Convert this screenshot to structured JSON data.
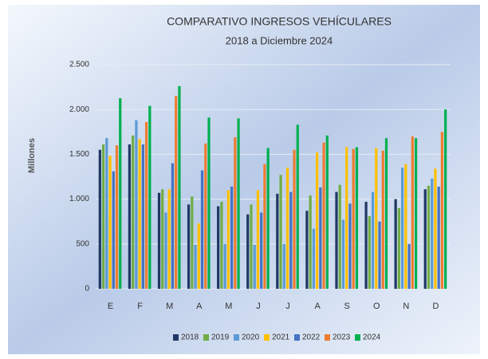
{
  "chart_data": {
    "type": "bar",
    "title": "COMPARATIVO INGRESOS VEHÍCULARES",
    "subtitle": "2018 a Diciembre 2024",
    "y_label": "Millones",
    "categories": [
      "E",
      "F",
      "M",
      "A",
      "M",
      "J",
      "J",
      "A",
      "S",
      "O",
      "N",
      "D"
    ],
    "series": [
      {
        "name": "2018",
        "color": "#203864",
        "values": [
          1550,
          1610,
          1070,
          940,
          920,
          830,
          1060,
          870,
          1080,
          970,
          1000,
          1110
        ]
      },
      {
        "name": "2019",
        "color": "#70ad47",
        "values": [
          1610,
          1710,
          1110,
          1030,
          970,
          940,
          1270,
          1040,
          1160,
          810,
          900,
          1150
        ]
      },
      {
        "name": "2020",
        "color": "#5b9bd5",
        "values": [
          1680,
          1880,
          850,
          490,
          500,
          490,
          500,
          670,
          770,
          1080,
          1350,
          1230
        ]
      },
      {
        "name": "2021",
        "color": "#ffc000",
        "values": [
          1485,
          1670,
          1110,
          730,
          1100,
          1100,
          1350,
          1520,
          1580,
          1570,
          1390,
          1340
        ]
      },
      {
        "name": "2022",
        "color": "#4472c4",
        "values": [
          1310,
          1610,
          1400,
          1320,
          1140,
          850,
          1080,
          1130,
          950,
          750,
          500,
          1140
        ]
      },
      {
        "name": "2023",
        "color": "#ed7d31",
        "values": [
          1600,
          1860,
          2150,
          1620,
          1690,
          1390,
          1550,
          1630,
          1560,
          1540,
          1700,
          1750
        ]
      },
      {
        "name": "2024",
        "color": "#00b050",
        "values": [
          2125,
          2040,
          2260,
          1910,
          1900,
          1570,
          1830,
          1710,
          1580,
          1680,
          1680,
          2000
        ]
      }
    ],
    "ylim": [
      0,
      2500
    ],
    "yticks": [
      0,
      500,
      {
        "value": 1000,
        "label": "1.000"
      },
      {
        "value": 1500,
        "label": "1.500"
      },
      {
        "value": 2000,
        "label": "2.000"
      },
      {
        "value": 2500,
        "label": "2.500"
      }
    ],
    "grid": true,
    "legend": "bottom"
  }
}
